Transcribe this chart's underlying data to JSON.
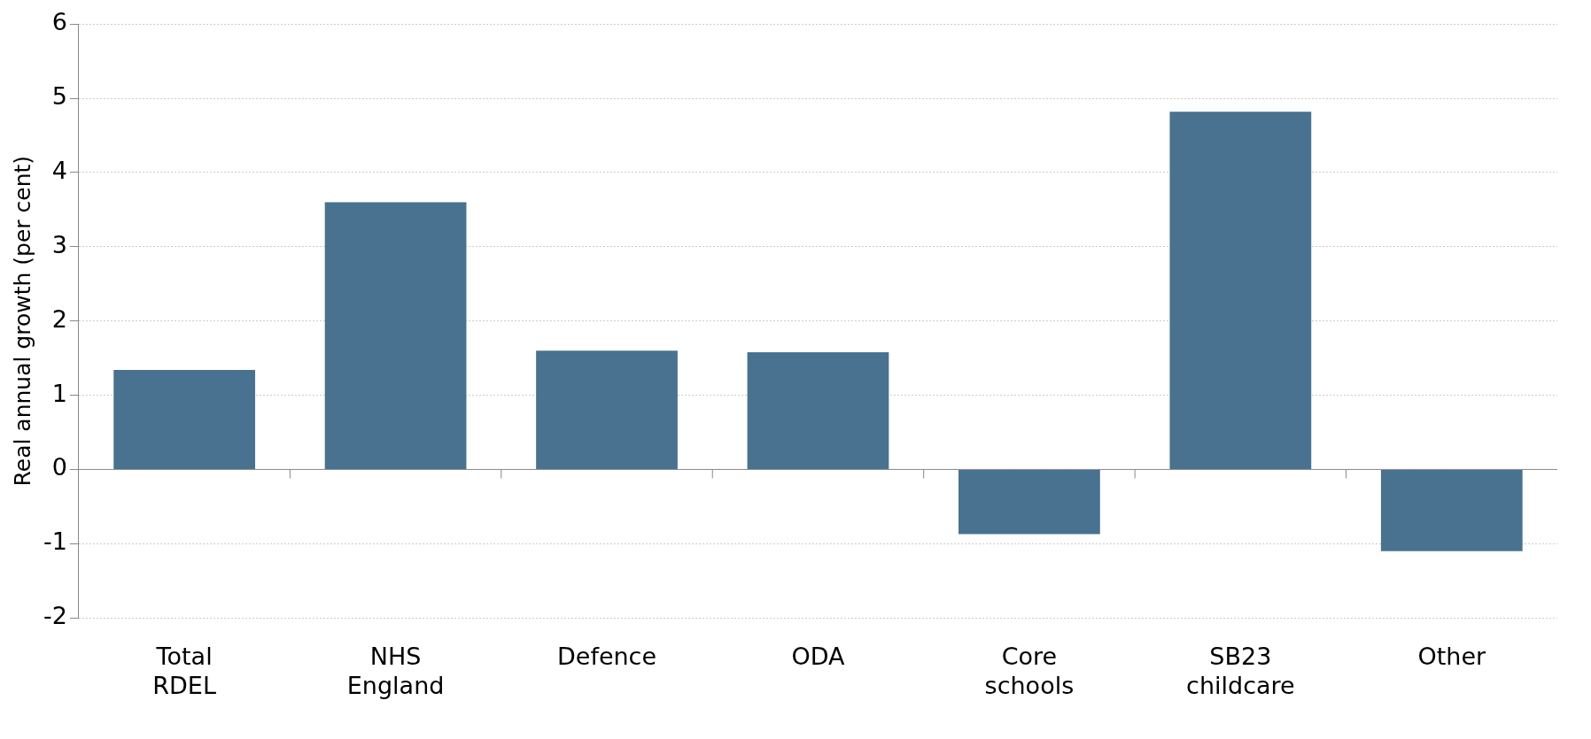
{
  "chart_data": {
    "type": "bar",
    "ylabel": "Real annual growth (per cent)",
    "categories": [
      "Total RDEL",
      "NHS England",
      "Defence",
      "ODA",
      "Core schools",
      "SB23 childcare",
      "Other"
    ],
    "values": [
      1.34,
      3.6,
      1.6,
      1.58,
      -0.87,
      4.82,
      -1.1
    ],
    "color": "#48728f",
    "ylim": [
      -2,
      6
    ],
    "yticks": [
      -2,
      -1,
      0,
      1,
      2,
      3,
      4,
      5,
      6
    ],
    "grid": "y"
  }
}
